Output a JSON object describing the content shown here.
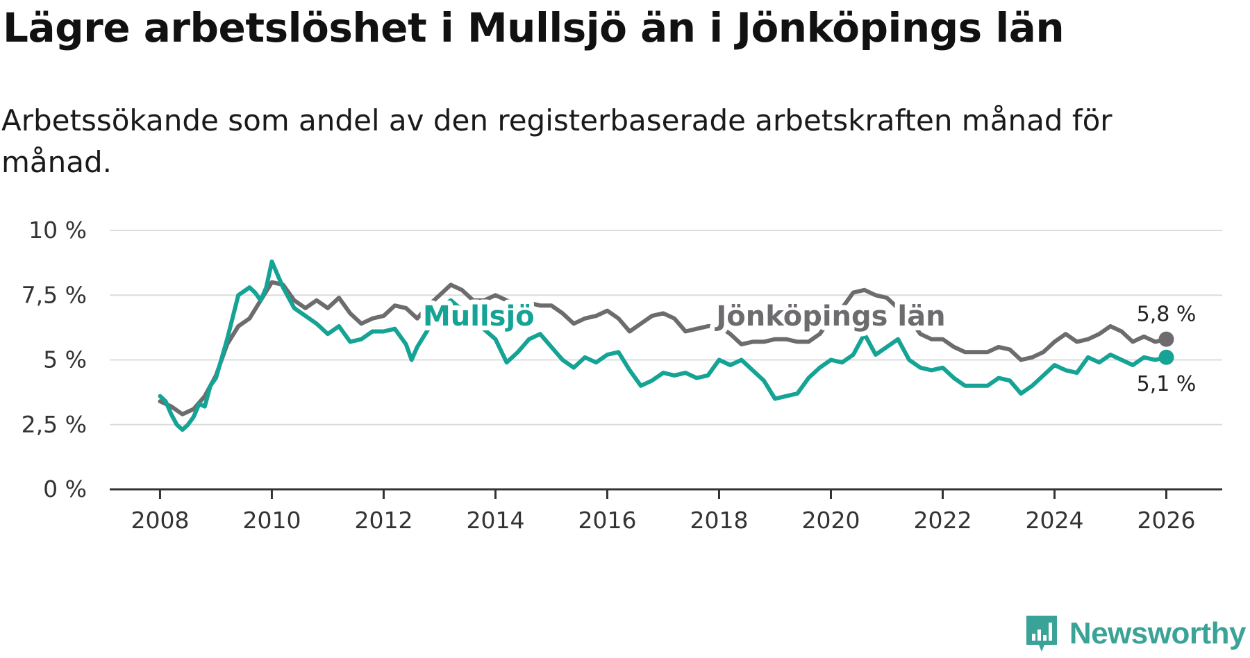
{
  "header": {
    "title": "Lägre arbetslöshet i Mullsjö än i Jönköpings län",
    "subtitle": "Arbetssökande som andel av den registerbaserade arbetskraften månad för månad."
  },
  "logo": {
    "text": "Newsworthy"
  },
  "colors": {
    "mullsjo": "#14a394",
    "lan": "#6d6b6e",
    "grid": "#dcdcdc",
    "axis": "#333333"
  },
  "chart_data": {
    "type": "line",
    "title": "Lägre arbetslöshet i Mullsjö än i Jönköpings län",
    "subtitle": "Arbetssökande som andel av den registerbaserade arbetskraften månad för månad.",
    "xlabel": "",
    "ylabel": "",
    "xlim": [
      2007.1,
      2027
    ],
    "ylim": [
      0,
      10
    ],
    "x_ticks": [
      2008,
      2010,
      2012,
      2014,
      2016,
      2018,
      2020,
      2022,
      2024,
      2026
    ],
    "x_tick_labels": [
      "2008",
      "2010",
      "2012",
      "2014",
      "2016",
      "2018",
      "2020",
      "2022",
      "2024",
      "2026"
    ],
    "y_ticks": [
      0,
      2.5,
      5,
      7.5,
      10
    ],
    "y_tick_labels": [
      "0 %",
      "2,5 %",
      "5 %",
      "7,5 %",
      "10 %"
    ],
    "grid": true,
    "series": [
      {
        "name": "Jönköpings län",
        "label": "Jönköpings län",
        "end_label": "5,8 %",
        "points": [
          [
            2008.0,
            3.4
          ],
          [
            2008.2,
            3.2
          ],
          [
            2008.4,
            2.9
          ],
          [
            2008.6,
            3.1
          ],
          [
            2008.8,
            3.6
          ],
          [
            2009.0,
            4.4
          ],
          [
            2009.2,
            5.6
          ],
          [
            2009.4,
            6.3
          ],
          [
            2009.6,
            6.6
          ],
          [
            2009.8,
            7.3
          ],
          [
            2010.0,
            8.0
          ],
          [
            2010.2,
            7.9
          ],
          [
            2010.4,
            7.3
          ],
          [
            2010.6,
            7.0
          ],
          [
            2010.8,
            7.3
          ],
          [
            2011.0,
            7.0
          ],
          [
            2011.2,
            7.4
          ],
          [
            2011.4,
            6.8
          ],
          [
            2011.6,
            6.4
          ],
          [
            2011.8,
            6.6
          ],
          [
            2012.0,
            6.7
          ],
          [
            2012.2,
            7.1
          ],
          [
            2012.4,
            7.0
          ],
          [
            2012.6,
            6.6
          ],
          [
            2012.8,
            7.1
          ],
          [
            2013.0,
            7.5
          ],
          [
            2013.2,
            7.9
          ],
          [
            2013.4,
            7.7
          ],
          [
            2013.6,
            7.3
          ],
          [
            2013.8,
            7.3
          ],
          [
            2014.0,
            7.5
          ],
          [
            2014.2,
            7.3
          ],
          [
            2014.4,
            7.1
          ],
          [
            2014.6,
            7.2
          ],
          [
            2014.8,
            7.1
          ],
          [
            2015.0,
            7.1
          ],
          [
            2015.2,
            6.8
          ],
          [
            2015.4,
            6.4
          ],
          [
            2015.6,
            6.6
          ],
          [
            2015.8,
            6.7
          ],
          [
            2016.0,
            6.9
          ],
          [
            2016.2,
            6.6
          ],
          [
            2016.4,
            6.1
          ],
          [
            2016.6,
            6.4
          ],
          [
            2016.8,
            6.7
          ],
          [
            2017.0,
            6.8
          ],
          [
            2017.2,
            6.6
          ],
          [
            2017.4,
            6.1
          ],
          [
            2017.6,
            6.2
          ],
          [
            2017.8,
            6.3
          ],
          [
            2018.0,
            6.3
          ],
          [
            2018.2,
            6.0
          ],
          [
            2018.4,
            5.6
          ],
          [
            2018.6,
            5.7
          ],
          [
            2018.8,
            5.7
          ],
          [
            2019.0,
            5.8
          ],
          [
            2019.2,
            5.8
          ],
          [
            2019.4,
            5.7
          ],
          [
            2019.6,
            5.7
          ],
          [
            2019.8,
            6.0
          ],
          [
            2020.0,
            6.6
          ],
          [
            2020.2,
            7.0
          ],
          [
            2020.4,
            7.6
          ],
          [
            2020.6,
            7.7
          ],
          [
            2020.8,
            7.5
          ],
          [
            2021.0,
            7.4
          ],
          [
            2021.2,
            7.0
          ],
          [
            2021.4,
            6.6
          ],
          [
            2021.6,
            6.0
          ],
          [
            2021.8,
            5.8
          ],
          [
            2022.0,
            5.8
          ],
          [
            2022.2,
            5.5
          ],
          [
            2022.4,
            5.3
          ],
          [
            2022.6,
            5.3
          ],
          [
            2022.8,
            5.3
          ],
          [
            2023.0,
            5.5
          ],
          [
            2023.2,
            5.4
          ],
          [
            2023.4,
            5.0
          ],
          [
            2023.6,
            5.1
          ],
          [
            2023.8,
            5.3
          ],
          [
            2024.0,
            5.7
          ],
          [
            2024.2,
            6.0
          ],
          [
            2024.4,
            5.7
          ],
          [
            2024.6,
            5.8
          ],
          [
            2024.8,
            6.0
          ],
          [
            2025.0,
            6.3
          ],
          [
            2025.2,
            6.1
          ],
          [
            2025.4,
            5.7
          ],
          [
            2025.6,
            5.9
          ],
          [
            2025.8,
            5.7
          ],
          [
            2026.0,
            5.8
          ]
        ]
      },
      {
        "name": "Mullsjö",
        "label": "Mullsjö",
        "end_label": "5,1 %",
        "points": [
          [
            2008.0,
            3.6
          ],
          [
            2008.1,
            3.4
          ],
          [
            2008.2,
            2.9
          ],
          [
            2008.3,
            2.5
          ],
          [
            2008.4,
            2.3
          ],
          [
            2008.5,
            2.5
          ],
          [
            2008.6,
            2.8
          ],
          [
            2008.7,
            3.3
          ],
          [
            2008.8,
            3.2
          ],
          [
            2008.9,
            4.0
          ],
          [
            2009.0,
            4.3
          ],
          [
            2009.2,
            5.8
          ],
          [
            2009.4,
            7.5
          ],
          [
            2009.6,
            7.8
          ],
          [
            2009.7,
            7.6
          ],
          [
            2009.8,
            7.3
          ],
          [
            2009.9,
            7.8
          ],
          [
            2010.0,
            8.8
          ],
          [
            2010.1,
            8.3
          ],
          [
            2010.2,
            7.8
          ],
          [
            2010.4,
            7.0
          ],
          [
            2010.6,
            6.7
          ],
          [
            2010.8,
            6.4
          ],
          [
            2011.0,
            6.0
          ],
          [
            2011.2,
            6.3
          ],
          [
            2011.4,
            5.7
          ],
          [
            2011.6,
            5.8
          ],
          [
            2011.8,
            6.1
          ],
          [
            2012.0,
            6.1
          ],
          [
            2012.2,
            6.2
          ],
          [
            2012.4,
            5.6
          ],
          [
            2012.5,
            5.0
          ],
          [
            2012.6,
            5.5
          ],
          [
            2012.8,
            6.2
          ],
          [
            2013.0,
            7.0
          ],
          [
            2013.2,
            7.3
          ],
          [
            2014.0,
            5.8
          ],
          [
            2014.2,
            4.9
          ],
          [
            2014.4,
            5.3
          ],
          [
            2014.6,
            5.8
          ],
          [
            2014.8,
            6.0
          ],
          [
            2015.0,
            5.5
          ],
          [
            2015.2,
            5.0
          ],
          [
            2015.4,
            4.7
          ],
          [
            2015.6,
            5.1
          ],
          [
            2015.8,
            4.9
          ],
          [
            2016.0,
            5.2
          ],
          [
            2016.2,
            5.3
          ],
          [
            2016.4,
            4.6
          ],
          [
            2016.6,
            4.0
          ],
          [
            2016.8,
            4.2
          ],
          [
            2017.0,
            4.5
          ],
          [
            2017.2,
            4.4
          ],
          [
            2017.4,
            4.5
          ],
          [
            2017.6,
            4.3
          ],
          [
            2017.8,
            4.4
          ],
          [
            2018.0,
            5.0
          ],
          [
            2018.2,
            4.8
          ],
          [
            2018.4,
            5.0
          ],
          [
            2018.6,
            4.6
          ],
          [
            2018.8,
            4.2
          ],
          [
            2019.0,
            3.5
          ],
          [
            2019.2,
            3.6
          ],
          [
            2019.4,
            3.7
          ],
          [
            2019.6,
            4.3
          ],
          [
            2019.8,
            4.7
          ],
          [
            2020.0,
            5.0
          ],
          [
            2020.2,
            4.9
          ],
          [
            2020.4,
            5.2
          ],
          [
            2020.6,
            6.0
          ],
          [
            2020.8,
            5.2
          ],
          [
            2021.0,
            5.5
          ],
          [
            2021.2,
            5.8
          ],
          [
            2021.4,
            5.0
          ],
          [
            2021.6,
            4.7
          ],
          [
            2021.8,
            4.6
          ],
          [
            2022.0,
            4.7
          ],
          [
            2022.2,
            4.3
          ],
          [
            2022.4,
            4.0
          ],
          [
            2022.6,
            4.0
          ],
          [
            2022.8,
            4.0
          ],
          [
            2023.0,
            4.3
          ],
          [
            2023.2,
            4.2
          ],
          [
            2023.4,
            3.7
          ],
          [
            2023.6,
            4.0
          ],
          [
            2023.8,
            4.4
          ],
          [
            2024.0,
            4.8
          ],
          [
            2024.2,
            4.6
          ],
          [
            2024.4,
            4.5
          ],
          [
            2024.6,
            5.1
          ],
          [
            2024.8,
            4.9
          ],
          [
            2025.0,
            5.2
          ],
          [
            2025.2,
            5.0
          ],
          [
            2025.4,
            4.8
          ],
          [
            2025.6,
            5.1
          ],
          [
            2025.8,
            5.0
          ],
          [
            2026.0,
            5.1
          ]
        ]
      }
    ]
  }
}
